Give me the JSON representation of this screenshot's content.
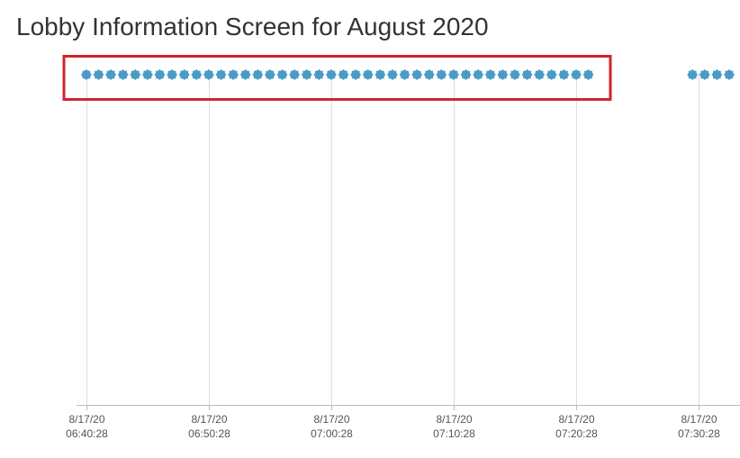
{
  "chart_data": {
    "type": "scatter",
    "title": "Lobby Information Screen for August 2020",
    "x": [
      "2020-08-17T06:40:28",
      "2020-08-17T06:41:28",
      "2020-08-17T06:42:28",
      "2020-08-17T06:43:28",
      "2020-08-17T06:44:28",
      "2020-08-17T06:45:28",
      "2020-08-17T06:46:28",
      "2020-08-17T06:47:28",
      "2020-08-17T06:48:28",
      "2020-08-17T06:49:28",
      "2020-08-17T06:50:28",
      "2020-08-17T06:51:28",
      "2020-08-17T06:52:28",
      "2020-08-17T06:53:28",
      "2020-08-17T06:54:28",
      "2020-08-17T06:55:28",
      "2020-08-17T06:56:28",
      "2020-08-17T06:57:28",
      "2020-08-17T06:58:28",
      "2020-08-17T06:59:28",
      "2020-08-17T07:00:28",
      "2020-08-17T07:01:28",
      "2020-08-17T07:02:28",
      "2020-08-17T07:03:28",
      "2020-08-17T07:04:28",
      "2020-08-17T07:05:28",
      "2020-08-17T07:06:28",
      "2020-08-17T07:07:28",
      "2020-08-17T07:08:28",
      "2020-08-17T07:09:28",
      "2020-08-17T07:10:28",
      "2020-08-17T07:11:28",
      "2020-08-17T07:12:28",
      "2020-08-17T07:13:28",
      "2020-08-17T07:14:28",
      "2020-08-17T07:15:28",
      "2020-08-17T07:16:28",
      "2020-08-17T07:17:28",
      "2020-08-17T07:18:28",
      "2020-08-17T07:19:28",
      "2020-08-17T07:20:28",
      "2020-08-17T07:21:28",
      "2020-08-17T07:29:58",
      "2020-08-17T07:30:58",
      "2020-08-17T07:31:58",
      "2020-08-17T07:32:58"
    ],
    "values": [
      1,
      1,
      1,
      1,
      1,
      1,
      1,
      1,
      1,
      1,
      1,
      1,
      1,
      1,
      1,
      1,
      1,
      1,
      1,
      1,
      1,
      1,
      1,
      1,
      1,
      1,
      1,
      1,
      1,
      1,
      1,
      1,
      1,
      1,
      1,
      1,
      1,
      1,
      1,
      1,
      1,
      1,
      1,
      1,
      1,
      1
    ],
    "color": "#4a9bc7",
    "ylim": [
      0,
      1
    ],
    "xlim": [
      "2020-08-17T06:39:40",
      "2020-08-17T07:33:51"
    ],
    "xticks": [
      {
        "value": "2020-08-17T06:40:28",
        "label": "8/17/20 06:40:28"
      },
      {
        "value": "2020-08-17T06:50:28",
        "label": "8/17/20 06:50:28"
      },
      {
        "value": "2020-08-17T07:00:28",
        "label": "8/17/20 07:00:28"
      },
      {
        "value": "2020-08-17T07:10:28",
        "label": "8/17/20 07:10:28"
      },
      {
        "value": "2020-08-17T07:20:28",
        "label": "8/17/20 07:20:28"
      },
      {
        "value": "2020-08-17T07:30:28",
        "label": "8/17/20 07:30:28"
      }
    ],
    "grid": true
  }
}
